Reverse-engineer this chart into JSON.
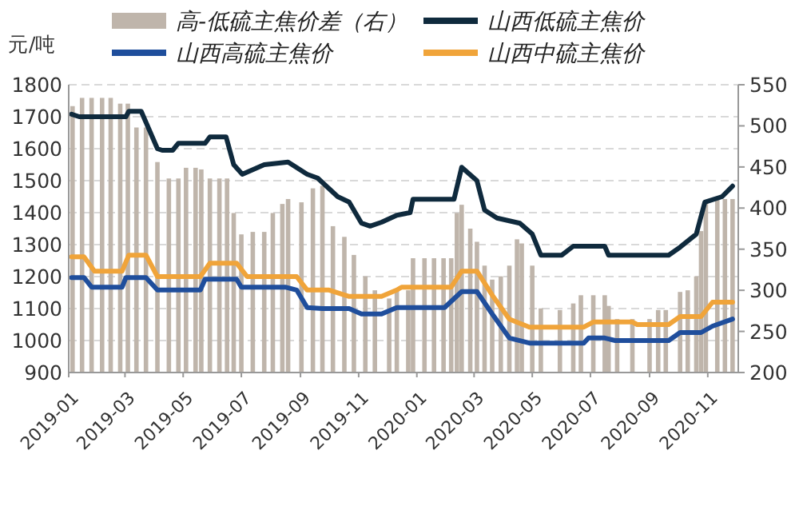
{
  "chart_data": {
    "type": "line",
    "ylabel": "元/吨",
    "grid": "y",
    "legend": "top",
    "xlim": [
      "2019-01-01",
      "2020-12-03"
    ],
    "xticks": [
      "2019-01",
      "2019-03",
      "2019-05",
      "2019-07",
      "2019-09",
      "2019-11",
      "2020-01",
      "2020-03",
      "2020-05",
      "2020-07",
      "2020-09",
      "2020-11"
    ],
    "ylim": [
      900,
      1800
    ],
    "yticks": [
      900,
      1000,
      1100,
      1200,
      1300,
      1400,
      1500,
      1600,
      1700,
      1800
    ],
    "y2lim": [
      200,
      550
    ],
    "y2ticks": [
      200,
      250,
      300,
      350,
      400,
      450,
      500,
      550
    ],
    "series": [
      {
        "name": "高-低硫主焦价差（右）",
        "type": "bar",
        "axis": "y2",
        "color": "#bfb5ab",
        "x": [
          "2019-01-05",
          "2019-01-15",
          "2019-01-25",
          "2019-02-05",
          "2019-02-14",
          "2019-02-24",
          "2019-03-04",
          "2019-03-13",
          "2019-03-23",
          "2019-04-04",
          "2019-04-16",
          "2019-04-26",
          "2019-05-04",
          "2019-05-14",
          "2019-05-20",
          "2019-05-29",
          "2019-06-08",
          "2019-06-16",
          "2019-06-23",
          "2019-07-01",
          "2019-07-13",
          "2019-07-25",
          "2019-08-03",
          "2019-08-13",
          "2019-08-19",
          "2019-09-02",
          "2019-09-14",
          "2019-09-24",
          "2019-10-05",
          "2019-10-17",
          "2019-10-27",
          "2019-11-08",
          "2019-11-18",
          "2019-12-03",
          "2019-12-11",
          "2019-12-23",
          "2019-12-28",
          "2020-01-09",
          "2020-01-19",
          "2020-01-29",
          "2020-02-06",
          "2020-02-12",
          "2020-02-17",
          "2020-02-26",
          "2020-03-04",
          "2020-03-12",
          "2020-03-20",
          "2020-03-29",
          "2020-04-07",
          "2020-04-15",
          "2020-04-20",
          "2020-05-01",
          "2020-05-10",
          "2020-05-30",
          "2020-06-13",
          "2020-06-21",
          "2020-07-04",
          "2020-07-16",
          "2020-07-20",
          "2020-07-29",
          "2020-08-14",
          "2020-09-01",
          "2020-09-10",
          "2020-09-18",
          "2020-10-03",
          "2020-10-11",
          "2020-10-20",
          "2020-10-25",
          "2020-10-30",
          "2020-11-11",
          "2020-11-19",
          "2020-11-27"
        ],
        "values": [
          524,
          534,
          534,
          534,
          534,
          527,
          527,
          498,
          498,
          456,
          436,
          436,
          449,
          449,
          447,
          436,
          436,
          436,
          394,
          368,
          371,
          371,
          394,
          405,
          411,
          407,
          424,
          427,
          378,
          365,
          343,
          317,
          300,
          290,
          300,
          300,
          339,
          339,
          339,
          339,
          339,
          394,
          404,
          375,
          359,
          330,
          313,
          317,
          330,
          362,
          357,
          330,
          278,
          276,
          284,
          294,
          294,
          294,
          281,
          265,
          265,
          265,
          276,
          276,
          298,
          300,
          317,
          372,
          407,
          411,
          411,
          411
        ]
      },
      {
        "name": "山西低硫主焦价",
        "color": "#0f2a3d",
        "x": [
          "2019-01-04",
          "2019-01-12",
          "2019-03-02",
          "2019-03-05",
          "2019-03-18",
          "2019-04-04",
          "2019-04-09",
          "2019-04-20",
          "2019-04-26",
          "2019-05-24",
          "2019-05-29",
          "2019-06-15",
          "2019-06-23",
          "2019-07-02",
          "2019-07-25",
          "2019-08-19",
          "2019-09-08",
          "2019-09-19",
          "2019-10-10",
          "2019-10-22",
          "2019-11-04",
          "2019-11-13",
          "2019-11-25",
          "2019-12-11",
          "2019-12-25",
          "2019-12-28",
          "2020-02-09",
          "2020-02-17",
          "2020-03-04",
          "2020-03-12",
          "2020-03-25",
          "2020-04-18",
          "2020-05-01",
          "2020-05-10",
          "2020-06-01",
          "2020-06-13",
          "2020-07-16",
          "2020-07-20",
          "2020-09-21",
          "2020-10-03",
          "2020-10-20",
          "2020-10-29",
          "2020-11-16",
          "2020-11-27"
        ],
        "values": [
          1708,
          1700,
          1700,
          1717,
          1717,
          1600,
          1595,
          1595,
          1617,
          1617,
          1637,
          1637,
          1550,
          1520,
          1550,
          1558,
          1520,
          1508,
          1450,
          1433,
          1367,
          1358,
          1370,
          1392,
          1400,
          1442,
          1442,
          1542,
          1500,
          1408,
          1383,
          1367,
          1333,
          1267,
          1267,
          1295,
          1295,
          1267,
          1267,
          1292,
          1333,
          1433,
          1450,
          1483
        ]
      },
      {
        "name": "山西高硫主焦价",
        "color": "#1f4e9c",
        "x": [
          "2019-01-04",
          "2019-01-17",
          "2019-01-25",
          "2019-02-26",
          "2019-03-02",
          "2019-03-23",
          "2019-04-04",
          "2019-05-19",
          "2019-05-24",
          "2019-06-26",
          "2019-07-01",
          "2019-08-16",
          "2019-08-28",
          "2019-09-08",
          "2019-09-24",
          "2019-10-22",
          "2019-11-04",
          "2019-11-25",
          "2019-12-11",
          "2020-01-30",
          "2020-02-17",
          "2020-03-04",
          "2020-03-20",
          "2020-04-07",
          "2020-04-28",
          "2020-06-24",
          "2020-06-29",
          "2020-07-16",
          "2020-07-27",
          "2020-09-21",
          "2020-10-03",
          "2020-10-25",
          "2020-11-06",
          "2020-11-27"
        ],
        "values": [
          1197,
          1197,
          1167,
          1167,
          1197,
          1197,
          1158,
          1158,
          1192,
          1192,
          1167,
          1167,
          1158,
          1103,
          1100,
          1100,
          1083,
          1083,
          1103,
          1103,
          1153,
          1153,
          1083,
          1008,
          992,
          992,
          1008,
          1008,
          1000,
          1000,
          1025,
          1025,
          1045,
          1067
        ]
      },
      {
        "name": "山西中硫主焦价",
        "color": "#f0a43a",
        "x": [
          "2019-01-04",
          "2019-01-17",
          "2019-01-28",
          "2019-02-26",
          "2019-03-05",
          "2019-03-23",
          "2019-04-04",
          "2019-05-19",
          "2019-05-29",
          "2019-06-26",
          "2019-07-07",
          "2019-08-28",
          "2019-09-08",
          "2019-10-01",
          "2019-10-22",
          "2019-11-25",
          "2019-12-11",
          "2019-12-16",
          "2020-02-06",
          "2020-02-17",
          "2020-03-04",
          "2020-03-20",
          "2020-04-07",
          "2020-04-28",
          "2020-06-24",
          "2020-07-04",
          "2020-08-14",
          "2020-08-19",
          "2020-09-21",
          "2020-10-03",
          "2020-10-25",
          "2020-11-06",
          "2020-11-27"
        ],
        "values": [
          1262,
          1262,
          1217,
          1217,
          1267,
          1267,
          1200,
          1200,
          1242,
          1242,
          1200,
          1200,
          1158,
          1158,
          1138,
          1138,
          1158,
          1167,
          1167,
          1217,
          1217,
          1142,
          1067,
          1042,
          1042,
          1058,
          1058,
          1050,
          1050,
          1075,
          1075,
          1120,
          1120
        ]
      }
    ]
  }
}
